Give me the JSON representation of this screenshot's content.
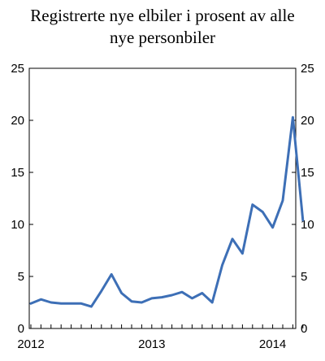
{
  "chart_data": {
    "type": "line",
    "title_lines": [
      "Registrerte nye elbiler i prosent av alle",
      "nye personbiler"
    ],
    "xlabel": "",
    "ylabel": "",
    "ylim": [
      0,
      25
    ],
    "yticks": [
      0,
      5,
      10,
      15,
      20,
      25
    ],
    "y_axis_left": true,
    "y_axis_right": true,
    "grid": false,
    "x_tick_labels": [
      "2012",
      "2013",
      "2014"
    ],
    "series": [
      {
        "color": "#3d6fb6",
        "months": [
          "2012-01",
          "2012-02",
          "2012-03",
          "2012-04",
          "2012-05",
          "2012-06",
          "2012-07",
          "2012-08",
          "2012-09",
          "2012-10",
          "2012-11",
          "2012-12",
          "2013-01",
          "2013-02",
          "2013-03",
          "2013-04",
          "2013-05",
          "2013-06",
          "2013-07",
          "2013-08",
          "2013-09",
          "2013-10",
          "2013-11",
          "2013-12",
          "2014-01",
          "2014-02",
          "2014-03",
          "2014-04"
        ],
        "values": [
          2.4,
          2.8,
          2.5,
          2.4,
          2.4,
          2.4,
          2.1,
          3.6,
          5.2,
          3.4,
          2.6,
          2.5,
          2.9,
          3.0,
          3.2,
          3.5,
          2.9,
          3.4,
          2.5,
          6.1,
          8.6,
          7.2,
          11.9,
          11.2,
          9.7,
          12.3,
          20.3,
          10.4
        ]
      }
    ]
  }
}
